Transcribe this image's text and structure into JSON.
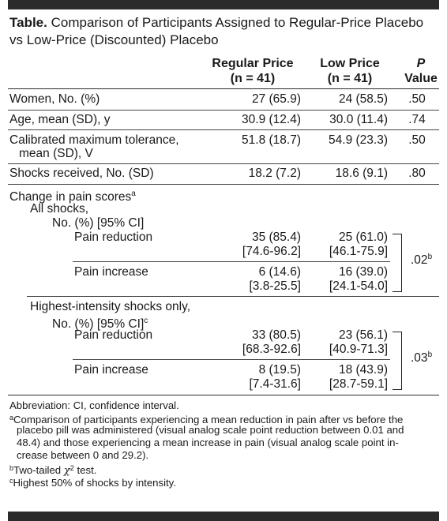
{
  "caption": {
    "label": "Table.",
    "title_line1": "Comparison of Participants Assigned to Regular-Price Placebo",
    "title_line2": "vs Low-Price (Discounted) Placebo"
  },
  "columns": {
    "regular": "Regular Price",
    "regular_n": "(n = 41)",
    "low": "Low Price",
    "low_n": "(n = 41)",
    "p_italic": "P",
    "p_label": "Value"
  },
  "rows": [
    {
      "label": "Women, No. (%)",
      "regular": "27 (65.9)",
      "low": "24 (58.5)",
      "p": ".50"
    },
    {
      "label": "Age, mean (SD), y",
      "regular": "30.9 (12.4)",
      "low": "30.0 (11.4)",
      "p": ".74"
    },
    {
      "label": "Calibrated maximum tolerance,",
      "label2": "mean (SD), V",
      "regular": "51.8 (18.7)",
      "low": "54.9 (23.3)",
      "p": ".50"
    },
    {
      "label": "Shocks received, No. (SD)",
      "regular": "18.2 (7.2)",
      "low": "18.6 (9.1)",
      "p": ".80"
    }
  ],
  "pain": {
    "heading": "Change in pain scores",
    "heading_sup": "a",
    "all": {
      "label1": "All shocks,",
      "label2": "No. (%) [95% CI]",
      "reduction": {
        "label": "Pain reduction",
        "regular": "35 (85.4)",
        "regular_ci": "[74.6-96.2]",
        "low": "25 (61.0)",
        "low_ci": "[46.1-75.9]"
      },
      "increase": {
        "label": "Pain increase",
        "regular": "6 (14.6)",
        "regular_ci": "[3.8-25.5]",
        "low": "16 (39.0)",
        "low_ci": "[24.1-54.0]"
      },
      "p": ".02",
      "p_sup": "b"
    },
    "highest": {
      "label1": "Highest-intensity shocks only,",
      "label2": "No. (%) [95% CI]",
      "label2_sup": "c",
      "reduction": {
        "label": "Pain reduction",
        "regular": "33 (80.5)",
        "regular_ci": "[68.3-92.6]",
        "low": "23 (56.1)",
        "low_ci": "[40.9-71.3]"
      },
      "increase": {
        "label": "Pain increase",
        "regular": "8 (19.5)",
        "regular_ci": "[7.4-31.6]",
        "low": "18 (43.9)",
        "low_ci": "[28.7-59.1]"
      },
      "p": ".03",
      "p_sup": "b"
    }
  },
  "notes": {
    "abbrev": "Abbreviation: CI, confidence interval.",
    "a_mark": "a",
    "a_line1": "Comparison of participants experiencing a mean reduction in pain after vs before the",
    "a_line2": "placebo pill was administered (visual analog scale point reduction between 0.01 and",
    "a_line3": "48.4) and those experiencing a mean increase in pain (visual analog scale point in-",
    "a_line4": "crease between 0 and 29.2).",
    "b_mark": "b",
    "b_text_pre": "Two-tailed ",
    "b_chi": "χ",
    "b_chi_sup": "2",
    "b_text_post": " test.",
    "c_mark": "c",
    "c_text": "Highest 50% of shocks by intensity."
  }
}
